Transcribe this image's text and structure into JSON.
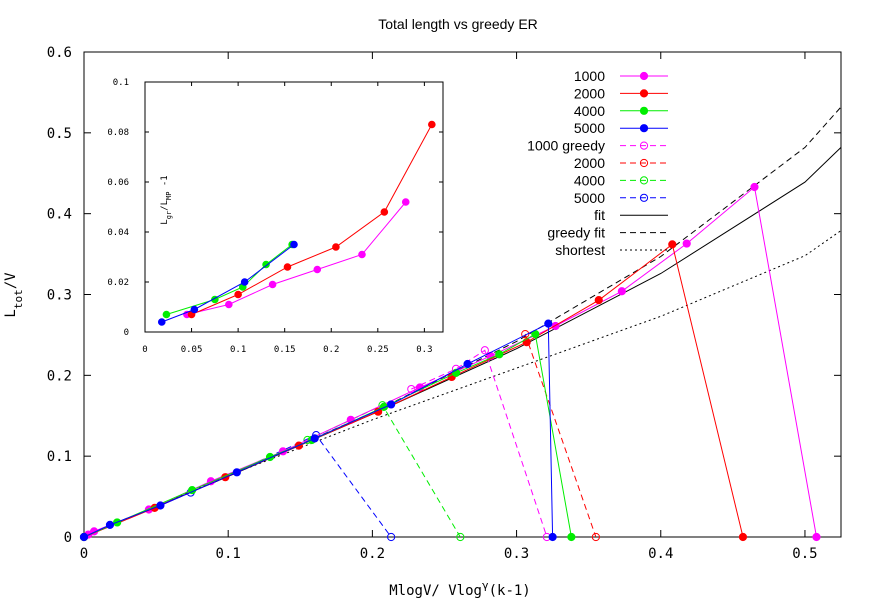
{
  "chart_data": [
    {
      "type": "line",
      "title": "Total length vs greedy ER",
      "xlabel": "MlogV/ Vlog",
      "xlabel_sup": "γ",
      "xlabel_tail": "(k-1)",
      "ylabel": "L",
      "ylabel_sub": "tot",
      "ylabel_tail": "/V",
      "xlim": [
        0,
        0.525
      ],
      "ylim": [
        0,
        0.6
      ],
      "xticks": [
        "0",
        "0.1",
        "0.2",
        "0.3",
        "0.4",
        "0.5"
      ],
      "yticks": [
        "0",
        "0.1",
        "0.2",
        "0.3",
        "0.4",
        "0.5",
        "0.6"
      ],
      "legend_position": "top-right",
      "series": [
        {
          "name": "1000",
          "color": "#ff00ff",
          "style": "solid",
          "marker": "filled",
          "x": [
            0.003,
            0.007,
            0.045,
            0.088,
            0.138,
            0.185,
            0.233,
            0.282,
            0.327,
            0.373,
            0.418,
            0.465,
            0.508
          ],
          "y": [
            0.003,
            0.007,
            0.034,
            0.069,
            0.106,
            0.145,
            0.185,
            0.224,
            0.261,
            0.304,
            0.363,
            0.433,
            0.0
          ]
        },
        {
          "name": "2000",
          "color": "#ff0000",
          "style": "solid",
          "marker": "filled",
          "x": [
            0.0,
            0.049,
            0.098,
            0.149,
            0.204,
            0.255,
            0.307,
            0.357,
            0.408,
            0.457
          ],
          "y": [
            0.0,
            0.036,
            0.074,
            0.113,
            0.155,
            0.198,
            0.241,
            0.293,
            0.362,
            0.0
          ]
        },
        {
          "name": "4000",
          "color": "#00ee00",
          "style": "solid",
          "marker": "filled",
          "x": [
            0.0,
            0.023,
            0.075,
            0.129,
            0.158,
            0.208,
            0.258,
            0.288,
            0.313,
            0.338
          ],
          "y": [
            0.0,
            0.018,
            0.058,
            0.099,
            0.12,
            0.161,
            0.203,
            0.226,
            0.251,
            0.0
          ]
        },
        {
          "name": "5000",
          "color": "#0000ff",
          "style": "solid",
          "marker": "filled",
          "x": [
            0.0,
            0.018,
            0.053,
            0.106,
            0.16,
            0.213,
            0.266,
            0.322,
            0.325
          ],
          "y": [
            0.0,
            0.015,
            0.039,
            0.08,
            0.122,
            0.164,
            0.214,
            0.264,
            0.0
          ]
        },
        {
          "name": "1000 greedy",
          "color": "#ff00ff",
          "style": "dashed",
          "marker": "open",
          "x": [
            0.227,
            0.258,
            0.278,
            0.321
          ],
          "y": [
            0.183,
            0.208,
            0.231,
            0.0
          ]
        },
        {
          "name": "2000",
          "color": "#ff0000",
          "style": "dashed",
          "marker": "open",
          "x": [
            0.306,
            0.355
          ],
          "y": [
            0.251,
            0.0
          ]
        },
        {
          "name": "4000",
          "color": "#00ee00",
          "style": "dashed",
          "marker": "open",
          "x": [
            0.155,
            0.207,
            0.261
          ],
          "y": [
            0.12,
            0.163,
            0.0
          ]
        },
        {
          "name": "5000",
          "color": "#0000ff",
          "style": "dashed",
          "marker": "open",
          "x": [
            0.0,
            0.074,
            0.161,
            0.213
          ],
          "y": [
            0.0,
            0.055,
            0.126,
            0.0
          ]
        },
        {
          "name": "fit",
          "color": "#000000",
          "style": "solid",
          "marker": "none",
          "x": [
            0.0,
            0.1,
            0.2,
            0.3,
            0.4,
            0.5,
            0.525
          ],
          "y": [
            0.0,
            0.075,
            0.152,
            0.233,
            0.326,
            0.439,
            0.482
          ]
        },
        {
          "name": "greedy fit",
          "color": "#000000",
          "style": "dashed",
          "marker": "none",
          "x": [
            0.0,
            0.1,
            0.2,
            0.3,
            0.4,
            0.5,
            0.525
          ],
          "y": [
            0.0,
            0.075,
            0.154,
            0.242,
            0.347,
            0.482,
            0.532
          ]
        },
        {
          "name": "shortest",
          "color": "#000000",
          "style": "dotted",
          "marker": "none",
          "x": [
            0.0,
            0.1,
            0.2,
            0.3,
            0.4,
            0.5,
            0.525
          ],
          "y": [
            0.0,
            0.076,
            0.145,
            0.209,
            0.273,
            0.348,
            0.379
          ]
        }
      ]
    },
    {
      "type": "line",
      "title": "",
      "xlabel": "",
      "ylabel": "L",
      "ylabel_sub1": "gr",
      "ylabel_mid": "/L",
      "ylabel_sub2": "MP",
      "ylabel_tail": " -1",
      "xlim": [
        0,
        0.32
      ],
      "ylim": [
        0,
        0.1
      ],
      "xticks": [
        "0",
        "0.05",
        "0.1",
        "0.15",
        "0.2",
        "0.25",
        "0.3"
      ],
      "yticks": [
        "0",
        "0.02",
        "0.04",
        "0.06",
        "0.08",
        "0.1"
      ],
      "series": [
        {
          "name": "1000",
          "color": "#ff00ff",
          "x": [
            0.045,
            0.09,
            0.137,
            0.185,
            0.233,
            0.28
          ],
          "y": [
            0.007,
            0.011,
            0.019,
            0.025,
            0.031,
            0.052
          ]
        },
        {
          "name": "2000",
          "color": "#ff0000",
          "x": [
            0.05,
            0.1,
            0.153,
            0.205,
            0.257,
            0.308
          ],
          "y": [
            0.007,
            0.015,
            0.026,
            0.034,
            0.048,
            0.083
          ]
        },
        {
          "name": "4000",
          "color": "#00ee00",
          "x": [
            0.023,
            0.075,
            0.105,
            0.13,
            0.158
          ],
          "y": [
            0.007,
            0.013,
            0.018,
            0.027,
            0.035
          ]
        },
        {
          "name": "5000",
          "color": "#0000ff",
          "x": [
            0.018,
            0.053,
            0.107,
            0.16
          ],
          "y": [
            0.004,
            0.009,
            0.02,
            0.035
          ]
        }
      ]
    }
  ]
}
